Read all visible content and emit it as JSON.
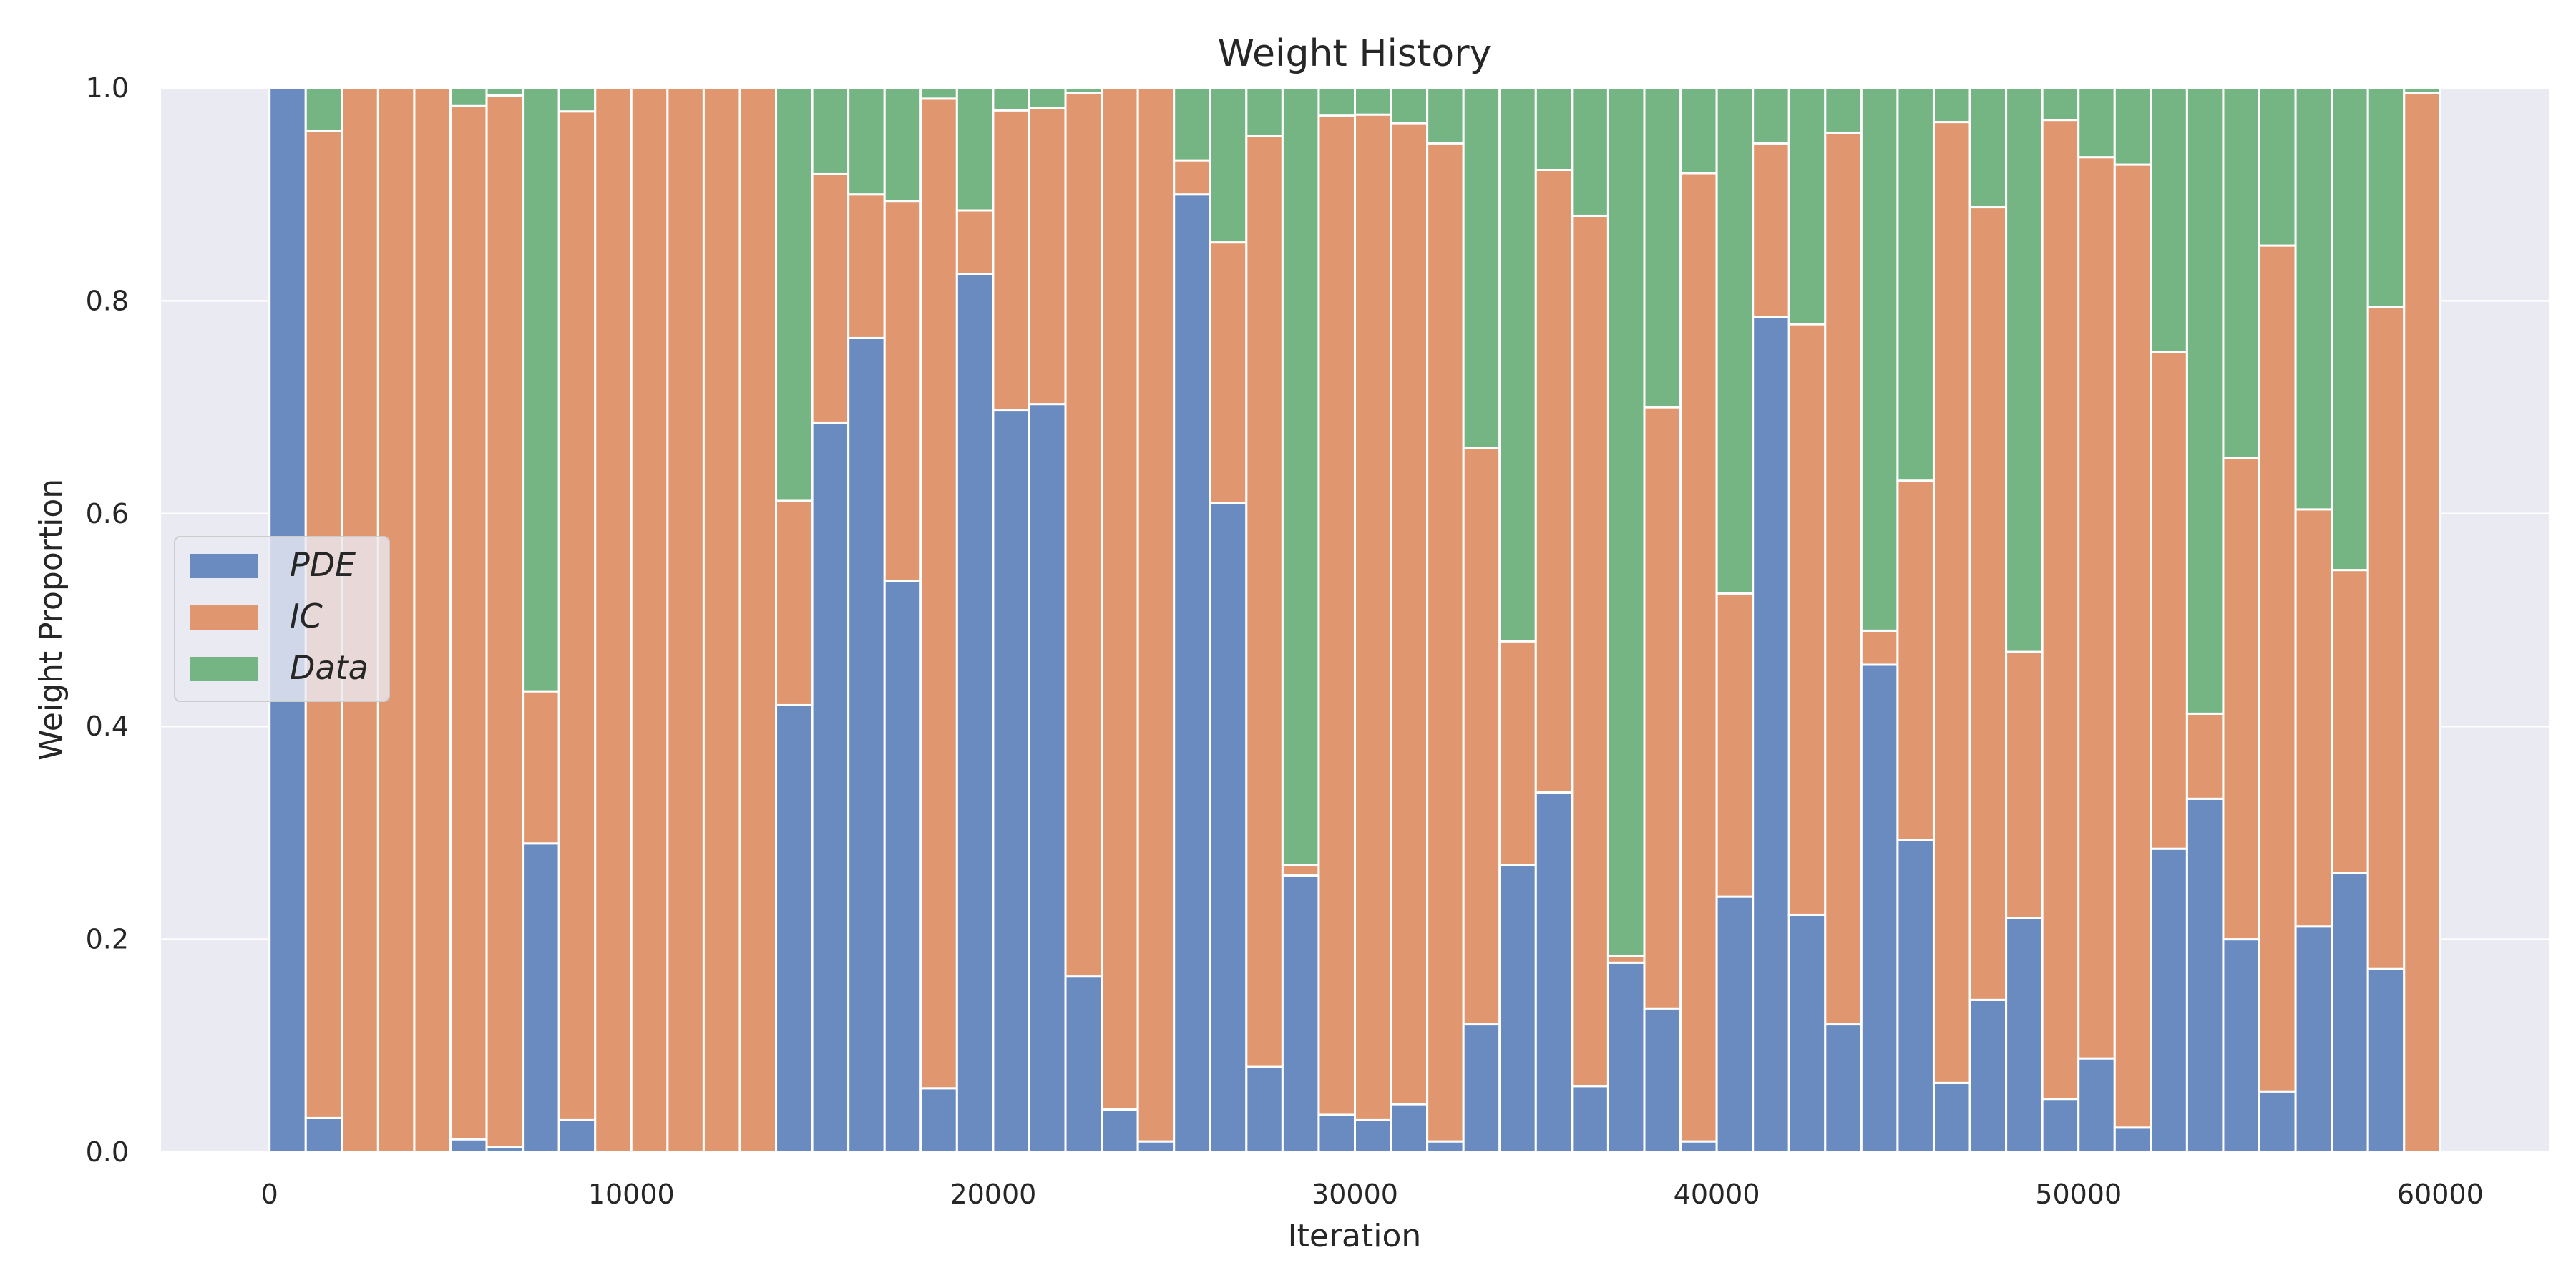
{
  "chart_data": {
    "type": "area",
    "style": "stacked step histogram (proportions sum to 1)",
    "title": "Weight History",
    "xlabel": "Iteration",
    "ylabel": "Weight Proportion",
    "xlim": [
      -3000,
      63000
    ],
    "ylim": [
      0,
      1
    ],
    "xticks": [
      0,
      10000,
      20000,
      30000,
      40000,
      50000,
      60000
    ],
    "xtick_labels": [
      "0",
      "10000",
      "20000",
      "30000",
      "40000",
      "50000",
      "60000"
    ],
    "yticks": [
      0,
      0.2,
      0.4,
      0.6,
      0.8,
      1.0
    ],
    "ytick_labels": [
      "0.0",
      "0.2",
      "0.4",
      "0.6",
      "0.8",
      "1.0"
    ],
    "grid": true,
    "legend_position": "center-left",
    "bin_width": 1000,
    "x": [
      0,
      1000,
      2000,
      3000,
      4000,
      5000,
      6000,
      7000,
      8000,
      9000,
      10000,
      11000,
      12000,
      13000,
      14000,
      15000,
      16000,
      17000,
      18000,
      19000,
      20000,
      21000,
      22000,
      23000,
      24000,
      25000,
      26000,
      27000,
      28000,
      29000,
      30000,
      31000,
      32000,
      33000,
      34000,
      35000,
      36000,
      37000,
      38000,
      39000,
      40000,
      41000,
      42000,
      43000,
      44000,
      45000,
      46000,
      47000,
      48000,
      49000,
      50000,
      51000,
      52000,
      53000,
      54000,
      55000,
      56000,
      57000,
      58000,
      59000
    ],
    "series": [
      {
        "name": "PDE",
        "color": "#6a8bc0",
        "values": [
          1.0,
          0.032,
          0.0,
          0.0,
          0.0,
          0.012,
          0.005,
          0.29,
          0.03,
          0.0,
          0.0,
          0.0,
          0.0,
          0.0,
          0.42,
          0.685,
          0.765,
          0.537,
          0.06,
          0.825,
          0.697,
          0.703,
          0.165,
          0.04,
          0.01,
          0.9,
          0.61,
          0.08,
          0.26,
          0.035,
          0.03,
          0.045,
          0.01,
          0.12,
          0.27,
          0.338,
          0.062,
          0.178,
          0.135,
          0.01,
          0.24,
          0.785,
          0.223,
          0.12,
          0.458,
          0.293,
          0.065,
          0.143,
          0.22,
          0.05,
          0.088,
          0.023,
          0.285,
          0.332,
          0.2,
          0.057,
          0.212,
          0.262,
          0.172,
          0.0
        ]
      },
      {
        "name": "IC",
        "color": "#e0976f",
        "values": [
          0.0,
          0.928,
          1.0,
          1.0,
          1.0,
          0.971,
          0.988,
          0.143,
          0.948,
          1.0,
          1.0,
          1.0,
          1.0,
          1.0,
          0.192,
          0.234,
          0.135,
          0.357,
          0.93,
          0.06,
          0.282,
          0.278,
          0.83,
          0.96,
          0.99,
          0.032,
          0.245,
          0.875,
          0.01,
          0.939,
          0.945,
          0.922,
          0.938,
          0.542,
          0.21,
          0.585,
          0.818,
          0.006,
          0.565,
          0.91,
          0.285,
          0.163,
          0.555,
          0.838,
          0.032,
          0.338,
          0.903,
          0.745,
          0.25,
          0.92,
          0.847,
          0.905,
          0.467,
          0.08,
          0.452,
          0.795,
          0.392,
          0.285,
          0.622,
          0.995
        ]
      },
      {
        "name": "Data",
        "color": "#74b583",
        "values": [
          0.0,
          0.04,
          0.0,
          0.0,
          0.0,
          0.017,
          0.007,
          0.567,
          0.022,
          0.0,
          0.0,
          0.0,
          0.0,
          0.0,
          0.388,
          0.081,
          0.1,
          0.106,
          0.01,
          0.115,
          0.021,
          0.019,
          0.005,
          0.0,
          0.0,
          0.068,
          0.145,
          0.045,
          0.73,
          0.026,
          0.025,
          0.033,
          0.052,
          0.338,
          0.52,
          0.077,
          0.12,
          0.816,
          0.3,
          0.08,
          0.475,
          0.052,
          0.222,
          0.042,
          0.51,
          0.369,
          0.032,
          0.112,
          0.53,
          0.03,
          0.065,
          0.072,
          0.248,
          0.588,
          0.348,
          0.148,
          0.396,
          0.453,
          0.206,
          0.005
        ]
      }
    ]
  }
}
